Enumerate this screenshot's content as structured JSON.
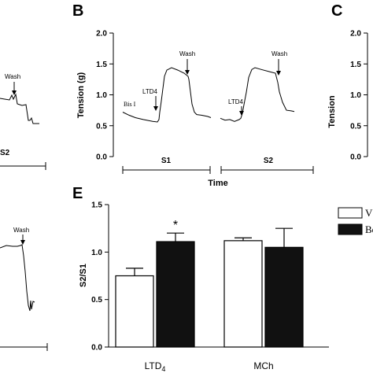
{
  "panels": {
    "A": {
      "wash_label": "Wash",
      "segment_labels": [
        "S2"
      ],
      "trace_top": [
        [
          0,
          125
        ],
        [
          6,
          126
        ],
        [
          12,
          127
        ],
        [
          15,
          121
        ],
        [
          17,
          126
        ],
        [
          20,
          120
        ],
        [
          22,
          132
        ],
        [
          28,
          134
        ],
        [
          33,
          133
        ],
        [
          36,
          153
        ],
        [
          38,
          153
        ],
        [
          40,
          150
        ],
        [
          42,
          157
        ],
        [
          50,
          157
        ]
      ],
      "trace_bottom": [
        [
          0,
          315
        ],
        [
          8,
          312
        ],
        [
          16,
          313
        ],
        [
          22,
          313
        ],
        [
          26,
          312
        ],
        [
          28,
          311
        ],
        [
          30,
          325
        ],
        [
          32,
          345
        ],
        [
          34,
          370
        ],
        [
          36,
          388
        ],
        [
          38,
          395
        ],
        [
          39,
          382
        ],
        [
          40,
          393
        ],
        [
          42,
          383
        ],
        [
          44,
          384
        ]
      ]
    },
    "B": {
      "letter": "B",
      "ylabel": "Tension (g)",
      "xlabel": "Time",
      "ylim": [
        0.0,
        2.0
      ],
      "yticks": [
        "0.0",
        "0.5",
        "1.0",
        "1.5",
        "2.0"
      ],
      "segments": [
        "S1",
        "S2"
      ],
      "annotations": {
        "bis": "Bis I",
        "ltd4_1": "LTD4",
        "ltd4_2": "LTD4",
        "wash_1": "Wash",
        "wash_2": "Wash"
      },
      "trace_s1": [
        [
          0,
          0.72
        ],
        [
          8,
          0.67
        ],
        [
          16,
          0.63
        ],
        [
          26,
          0.6
        ],
        [
          38,
          0.57
        ],
        [
          44,
          0.56
        ],
        [
          46,
          0.6
        ],
        [
          47,
          0.72
        ],
        [
          49,
          0.9
        ],
        [
          51,
          1.1
        ],
        [
          53,
          1.3
        ],
        [
          56,
          1.4
        ],
        [
          62,
          1.44
        ],
        [
          70,
          1.4
        ],
        [
          78,
          1.35
        ],
        [
          83,
          1.3
        ],
        [
          84,
          1.25
        ],
        [
          86,
          1.05
        ],
        [
          88,
          0.85
        ],
        [
          91,
          0.72
        ],
        [
          94,
          0.68
        ],
        [
          100,
          0.67
        ],
        [
          108,
          0.65
        ],
        [
          112,
          0.63
        ]
      ],
      "trace_s2": [
        [
          124,
          0.62
        ],
        [
          130,
          0.59
        ],
        [
          136,
          0.6
        ],
        [
          142,
          0.57
        ],
        [
          148,
          0.6
        ],
        [
          150,
          0.62
        ],
        [
          152,
          0.7
        ],
        [
          154,
          0.84
        ],
        [
          157,
          1.04
        ],
        [
          160,
          1.28
        ],
        [
          164,
          1.41
        ],
        [
          168,
          1.44
        ],
        [
          176,
          1.41
        ],
        [
          188,
          1.37
        ],
        [
          194,
          1.35
        ],
        [
          197,
          1.2
        ],
        [
          199,
          1.05
        ],
        [
          203,
          0.88
        ],
        [
          208,
          0.75
        ],
        [
          214,
          0.74
        ],
        [
          218,
          0.73
        ]
      ]
    },
    "C": {
      "letter": "C",
      "ylabel": "Tension",
      "yticks": [
        "0.0",
        "0.5",
        "1.0",
        "1.5",
        "2.0"
      ]
    }
  },
  "chart_data": {
    "type": "bar",
    "panel": "E",
    "letter": "E",
    "categories": [
      "LTD4",
      "MCh"
    ],
    "category_display": [
      {
        "main": "LTD",
        "sub": "4"
      },
      {
        "main": "MCh",
        "sub": ""
      }
    ],
    "ylabel": "S2/S1",
    "ylim": [
      0.0,
      1.5
    ],
    "yticks": [
      "0.0",
      "0.5",
      "1.0",
      "1.5"
    ],
    "series": [
      {
        "name": "V",
        "fill": "#ffffff",
        "values": [
          0.75,
          1.12
        ],
        "errors": [
          0.08,
          0.03
        ]
      },
      {
        "name": "Be",
        "fill": "#111111",
        "values": [
          1.11,
          1.05
        ],
        "errors": [
          0.09,
          0.2
        ]
      }
    ],
    "significance": [
      {
        "series": 1,
        "category": 0,
        "label": "*"
      }
    ]
  }
}
